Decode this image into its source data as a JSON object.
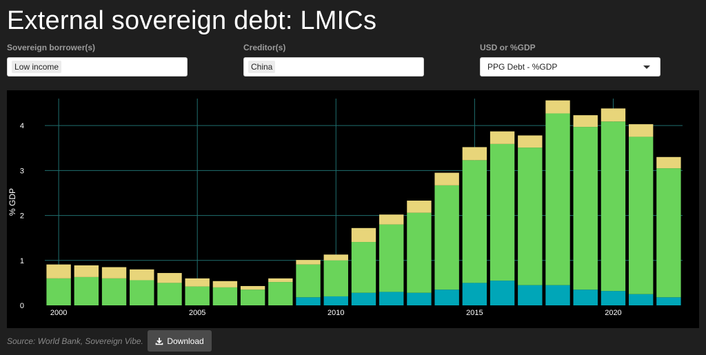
{
  "page": {
    "title": "External sovereign debt: LMICs"
  },
  "filters": {
    "borrower": {
      "label": "Sovereign borrower(s)",
      "value": "Low income"
    },
    "creditor": {
      "label": "Creditor(s)",
      "value": "China"
    },
    "unit": {
      "label": "USD or %GDP",
      "value": "PPG Debt - %GDP"
    }
  },
  "footer": {
    "source": "Source: World Bank, Sovereign Vibe.",
    "download_label": "Download"
  },
  "colors": {
    "background": "#000000",
    "grid": "#1f6f6f",
    "series_bottom": "#00a6b8",
    "series_middle": "#6ad45a",
    "series_top": "#e8d57a"
  },
  "chart_data": {
    "type": "bar",
    "stacked": true,
    "ylabel": "% GDP",
    "xlabel": "",
    "ylim": [
      0,
      4.6
    ],
    "yticks": [
      0,
      1,
      2,
      3,
      4
    ],
    "xticks": [
      2000,
      2005,
      2010,
      2015,
      2020
    ],
    "grid": true,
    "legend": "none",
    "categories": [
      2000,
      2001,
      2002,
      2003,
      2004,
      2005,
      2006,
      2007,
      2008,
      2009,
      2010,
      2011,
      2012,
      2013,
      2014,
      2015,
      2016,
      2017,
      2018,
      2019,
      2020,
      2021,
      2022
    ],
    "series": [
      {
        "color": "#00a6b8",
        "values": [
          0.0,
          0.0,
          0.0,
          0.0,
          0.0,
          0.0,
          0.0,
          0.0,
          0.0,
          0.18,
          0.2,
          0.28,
          0.3,
          0.28,
          0.35,
          0.5,
          0.55,
          0.45,
          0.45,
          0.35,
          0.32,
          0.25,
          0.18
        ]
      },
      {
        "color": "#6ad45a",
        "values": [
          0.6,
          0.63,
          0.6,
          0.56,
          0.5,
          0.42,
          0.4,
          0.35,
          0.52,
          0.73,
          0.8,
          1.13,
          1.5,
          1.78,
          2.32,
          2.73,
          3.04,
          3.06,
          3.82,
          3.62,
          3.77,
          3.5,
          2.87
        ]
      },
      {
        "color": "#e8d57a",
        "values": [
          0.31,
          0.26,
          0.25,
          0.24,
          0.22,
          0.18,
          0.14,
          0.08,
          0.08,
          0.1,
          0.13,
          0.31,
          0.22,
          0.27,
          0.28,
          0.29,
          0.28,
          0.27,
          0.29,
          0.26,
          0.29,
          0.28,
          0.25
        ]
      }
    ]
  }
}
